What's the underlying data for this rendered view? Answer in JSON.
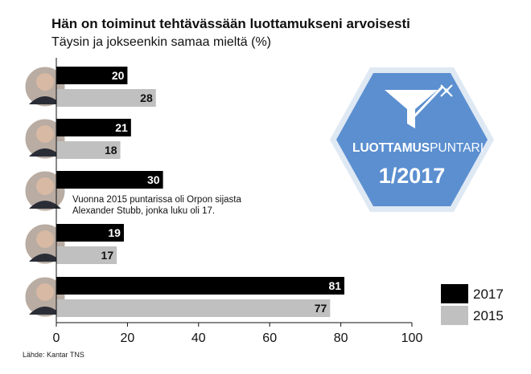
{
  "source": "Lähde: Kantar TNS",
  "chart_data": {
    "type": "bar",
    "orientation": "horizontal",
    "title": "Hän on toiminut tehtävässään luottamukseni arvoisesti",
    "subtitle": "Täysin ja jokseenkin samaa mieltä (%)",
    "xlim": [
      0,
      100
    ],
    "xticks": [
      0,
      20,
      40,
      60,
      80,
      100
    ],
    "grid": false,
    "legend_position": "bottom-right",
    "series": [
      {
        "name": "2017",
        "color": "#000000",
        "values": [
          20,
          21,
          30,
          19,
          81
        ]
      },
      {
        "name": "2015",
        "color": "#c0c0c0",
        "values": [
          28,
          18,
          null,
          17,
          77
        ]
      }
    ],
    "annotation": {
      "row": 2,
      "lines": [
        "Vuonna 2015 puntarissa oli Orpon sijasta",
        "Alexander Stubb, jonka luku oli 17."
      ]
    }
  },
  "badge": {
    "brand_bold": "LUOTTAMUS",
    "brand_light": "PUNTARI",
    "issue": "1/2017",
    "colors": {
      "fill": "#5b8fd0",
      "border": "#dfe9f4"
    }
  }
}
